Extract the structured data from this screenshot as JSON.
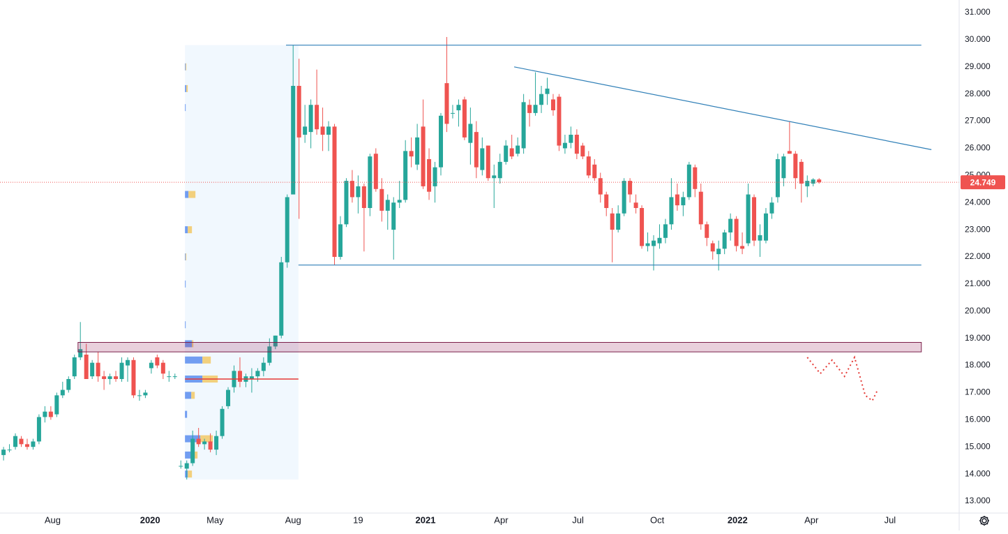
{
  "chart_data": {
    "type": "candlestick",
    "x": [
      0,
      1,
      2,
      3,
      4,
      5,
      6,
      7,
      8,
      9,
      10,
      11,
      12,
      13,
      14,
      15,
      16,
      17,
      18,
      19,
      20,
      21,
      22,
      23,
      24,
      25,
      26,
      27,
      28,
      29,
      30,
      31,
      32,
      33,
      34,
      35,
      36,
      37,
      38,
      39,
      40,
      41,
      42,
      43,
      44,
      45,
      46,
      47,
      48,
      49,
      50,
      51,
      52,
      53,
      54,
      55,
      56,
      57,
      58,
      59,
      60,
      61,
      62,
      63,
      64,
      65,
      66,
      67,
      68,
      69,
      70,
      71,
      72,
      73,
      74,
      75,
      76,
      77,
      78,
      79,
      80,
      81,
      82,
      83,
      84,
      85,
      86,
      87,
      88,
      89,
      90,
      91,
      92,
      93,
      94,
      95,
      96,
      97,
      98,
      99,
      100,
      101,
      102,
      103,
      104,
      105,
      106,
      107,
      108,
      109,
      110,
      111,
      112,
      113,
      114,
      115,
      116,
      117,
      118,
      119,
      120,
      121,
      122,
      123,
      124,
      125,
      126,
      127,
      128,
      129,
      130,
      131,
      132,
      133,
      134,
      135,
      136,
      137,
      138
    ],
    "ohlc": [
      [
        14.7,
        15.0,
        14.5,
        14.9
      ],
      [
        14.9,
        15.1,
        14.8,
        14.9
      ],
      [
        15.0,
        15.5,
        14.9,
        15.4
      ],
      [
        15.3,
        15.4,
        15.0,
        15.1
      ],
      [
        15.1,
        15.3,
        14.9,
        15.0
      ],
      [
        15.0,
        15.3,
        14.9,
        15.2
      ],
      [
        15.2,
        16.2,
        15.1,
        16.1
      ],
      [
        16.1,
        16.5,
        15.9,
        16.3
      ],
      [
        16.3,
        16.5,
        16.0,
        16.1
      ],
      [
        16.2,
        17.0,
        16.1,
        16.9
      ],
      [
        16.9,
        17.4,
        16.8,
        17.1
      ],
      [
        17.1,
        17.6,
        17.0,
        17.5
      ],
      [
        17.6,
        18.4,
        17.5,
        18.3
      ],
      [
        18.3,
        19.6,
        18.2,
        18.6
      ],
      [
        18.4,
        18.8,
        17.5,
        17.5
      ],
      [
        17.6,
        18.2,
        17.5,
        18.1
      ],
      [
        18.1,
        18.5,
        17.4,
        17.6
      ],
      [
        17.6,
        17.8,
        17.1,
        17.5
      ],
      [
        17.5,
        17.7,
        17.3,
        17.6
      ],
      [
        17.6,
        17.8,
        17.4,
        17.5
      ],
      [
        17.5,
        18.3,
        17.4,
        18.1
      ],
      [
        18.0,
        18.3,
        17.4,
        18.2
      ],
      [
        18.2,
        18.3,
        16.8,
        16.9
      ],
      [
        16.9,
        17.1,
        16.7,
        16.9
      ],
      [
        16.9,
        17.1,
        16.8,
        17.0
      ],
      [
        17.9,
        18.2,
        17.7,
        18.1
      ],
      [
        18.3,
        18.4,
        17.9,
        18.0
      ],
      [
        18.1,
        18.2,
        17.5,
        17.7
      ],
      [
        17.6,
        17.8,
        17.4,
        17.6
      ],
      [
        17.6,
        17.7,
        17.5,
        17.6
      ],
      [
        14.3,
        14.5,
        14.2,
        14.3
      ],
      [
        14.2,
        14.5,
        13.8,
        14.4
      ],
      [
        14.4,
        15.6,
        14.3,
        15.3
      ],
      [
        15.3,
        15.7,
        15.0,
        15.1
      ],
      [
        15.1,
        15.3,
        14.9,
        15.2
      ],
      [
        15.2,
        15.5,
        14.8,
        14.9
      ],
      [
        14.9,
        15.6,
        14.7,
        15.4
      ],
      [
        15.4,
        16.5,
        15.3,
        16.4
      ],
      [
        16.5,
        17.2,
        16.4,
        17.1
      ],
      [
        17.2,
        18.0,
        17.0,
        17.8
      ],
      [
        17.8,
        18.3,
        17.2,
        17.4
      ],
      [
        17.4,
        17.7,
        17.2,
        17.6
      ],
      [
        17.5,
        17.9,
        17.0,
        17.6
      ],
      [
        17.6,
        17.9,
        17.4,
        17.8
      ],
      [
        17.8,
        18.3,
        17.6,
        18.1
      ],
      [
        18.1,
        19.0,
        18.0,
        18.7
      ],
      [
        18.7,
        19.1,
        18.6,
        19.1
      ],
      [
        19.1,
        22.0,
        19.0,
        21.8
      ],
      [
        21.8,
        24.3,
        21.6,
        24.2
      ],
      [
        24.3,
        29.8,
        24.3,
        28.3
      ],
      [
        28.3,
        29.3,
        23.4,
        26.4
      ],
      [
        26.5,
        27.6,
        26.2,
        26.8
      ],
      [
        26.6,
        27.8,
        26.0,
        27.6
      ],
      [
        27.6,
        28.9,
        26.5,
        26.7
      ],
      [
        26.8,
        27.5,
        25.9,
        26.5
      ],
      [
        26.5,
        27.0,
        25.9,
        26.8
      ],
      [
        26.8,
        26.9,
        21.7,
        22.0
      ],
      [
        22.0,
        23.5,
        21.9,
        23.2
      ],
      [
        23.2,
        24.9,
        23.1,
        24.8
      ],
      [
        24.8,
        25.2,
        24.0,
        24.2
      ],
      [
        24.2,
        25.0,
        23.6,
        24.6
      ],
      [
        24.6,
        24.7,
        22.2,
        23.8
      ],
      [
        23.8,
        25.8,
        23.5,
        25.7
      ],
      [
        25.8,
        26.0,
        24.4,
        24.5
      ],
      [
        24.5,
        24.9,
        23.3,
        23.7
      ],
      [
        23.7,
        24.3,
        23.0,
        24.1
      ],
      [
        23.0,
        24.2,
        21.9,
        24.0
      ],
      [
        24.0,
        24.8,
        23.8,
        24.1
      ],
      [
        24.1,
        26.3,
        24.0,
        25.9
      ],
      [
        25.9,
        26.4,
        25.3,
        25.7
      ],
      [
        25.4,
        26.9,
        25.2,
        26.4
      ],
      [
        26.8,
        27.8,
        24.5,
        24.6
      ],
      [
        25.6,
        26.0,
        24.1,
        24.4
      ],
      [
        24.6,
        25.5,
        24.0,
        25.3
      ],
      [
        25.3,
        27.3,
        25.0,
        27.2
      ],
      [
        28.4,
        30.1,
        26.6,
        26.9
      ],
      [
        27.3,
        27.6,
        27.1,
        27.3
      ],
      [
        27.4,
        27.8,
        26.8,
        27.6
      ],
      [
        27.8,
        27.9,
        26.3,
        26.4
      ],
      [
        26.2,
        27.5,
        25.4,
        26.9
      ],
      [
        26.6,
        27.0,
        24.9,
        25.3
      ],
      [
        25.2,
        26.4,
        25.0,
        26.0
      ],
      [
        26.1,
        26.1,
        24.8,
        24.9
      ],
      [
        24.9,
        25.4,
        23.8,
        25.0
      ],
      [
        24.9,
        25.8,
        24.7,
        25.5
      ],
      [
        25.5,
        26.3,
        25.4,
        26.1
      ],
      [
        26.0,
        26.5,
        25.6,
        25.7
      ],
      [
        25.8,
        26.4,
        25.7,
        26.1
      ],
      [
        26.0,
        28.0,
        25.8,
        27.7
      ],
      [
        27.6,
        27.8,
        26.8,
        27.3
      ],
      [
        27.3,
        28.8,
        27.2,
        27.6
      ],
      [
        27.6,
        28.3,
        27.3,
        28.0
      ],
      [
        28.0,
        28.6,
        27.6,
        28.2
      ],
      [
        27.8,
        28.0,
        27.2,
        27.4
      ],
      [
        27.9,
        28.0,
        25.9,
        26.1
      ],
      [
        26.0,
        26.5,
        25.8,
        26.2
      ],
      [
        26.2,
        26.8,
        26.0,
        26.5
      ],
      [
        26.5,
        26.7,
        25.6,
        25.8
      ],
      [
        26.1,
        26.2,
        25.6,
        25.7
      ],
      [
        25.7,
        25.9,
        24.9,
        25.0
      ],
      [
        25.4,
        25.6,
        24.8,
        24.9
      ],
      [
        24.9,
        25.1,
        24.0,
        24.3
      ],
      [
        24.3,
        24.4,
        23.5,
        23.8
      ],
      [
        23.6,
        23.8,
        21.8,
        23.0
      ],
      [
        23.0,
        23.9,
        22.9,
        23.6
      ],
      [
        23.6,
        24.9,
        23.5,
        24.8
      ],
      [
        24.8,
        24.9,
        24.0,
        24.3
      ],
      [
        24.0,
        24.3,
        23.6,
        23.8
      ],
      [
        23.8,
        23.9,
        22.3,
        22.4
      ],
      [
        22.4,
        22.9,
        22.2,
        22.5
      ],
      [
        22.4,
        22.8,
        21.5,
        22.6
      ],
      [
        22.5,
        23.2,
        22.3,
        22.7
      ],
      [
        22.7,
        23.4,
        22.5,
        23.2
      ],
      [
        23.2,
        24.9,
        23.0,
        24.2
      ],
      [
        24.3,
        24.7,
        23.7,
        23.9
      ],
      [
        23.9,
        24.4,
        23.5,
        24.2
      ],
      [
        24.2,
        25.5,
        24.1,
        25.4
      ],
      [
        25.3,
        25.4,
        24.2,
        24.5
      ],
      [
        24.4,
        24.7,
        23.0,
        23.2
      ],
      [
        23.2,
        23.3,
        22.4,
        22.7
      ],
      [
        22.5,
        22.6,
        21.9,
        22.2
      ],
      [
        22.1,
        22.6,
        21.5,
        22.3
      ],
      [
        22.3,
        23.0,
        22.1,
        22.9
      ],
      [
        22.9,
        23.6,
        22.6,
        23.4
      ],
      [
        23.4,
        23.5,
        22.2,
        22.4
      ],
      [
        22.4,
        22.9,
        22.1,
        22.3
      ],
      [
        22.5,
        24.7,
        22.4,
        24.3
      ],
      [
        24.2,
        24.3,
        22.4,
        22.6
      ],
      [
        22.6,
        23.2,
        22.0,
        22.8
      ],
      [
        22.6,
        23.8,
        22.5,
        23.6
      ],
      [
        23.6,
        24.2,
        23.4,
        24.0
      ],
      [
        24.2,
        25.8,
        24.0,
        25.6
      ],
      [
        24.9,
        25.8,
        24.6,
        25.7
      ],
      [
        25.9,
        27.0,
        25.8,
        25.8
      ],
      [
        25.8,
        25.9,
        24.5,
        24.9
      ],
      [
        25.5,
        25.6,
        24.0,
        24.7
      ],
      [
        24.6,
        25.0,
        24.2,
        24.8
      ],
      [
        24.7,
        24.9,
        24.6,
        24.85
      ],
      [
        24.85,
        24.9,
        24.7,
        24.749
      ]
    ],
    "up_color": "#26a69a",
    "down_color": "#ef5350",
    "last_price": 24.749,
    "xlim": [
      -0.6,
      161.7
    ],
    "ylim": [
      12.563,
      31.463
    ],
    "xticks": [
      {
        "value": 8.3,
        "label": "Aug"
      },
      {
        "value": 24.8,
        "label": "2020"
      },
      {
        "value": 35.8,
        "label": "May"
      },
      {
        "value": 49,
        "label": "Aug"
      },
      {
        "value": 60,
        "label": "19"
      },
      {
        "value": 71.4,
        "label": "2021"
      },
      {
        "value": 84.2,
        "label": "Apr"
      },
      {
        "value": 97.2,
        "label": "Jul"
      },
      {
        "value": 110.6,
        "label": "Oct"
      },
      {
        "value": 124.2,
        "label": "2022"
      },
      {
        "value": 136.7,
        "label": "Apr"
      },
      {
        "value": 150,
        "label": "Jul"
      }
    ],
    "yticks": [
      {
        "value": 13,
        "label": "13.000"
      },
      {
        "value": 14,
        "label": "14.000"
      },
      {
        "value": 15,
        "label": "15.000"
      },
      {
        "value": 16,
        "label": "16.000"
      },
      {
        "value": 17,
        "label": "17.000"
      },
      {
        "value": 18,
        "label": "18.000"
      },
      {
        "value": 19,
        "label": "19.000"
      },
      {
        "value": 20,
        "label": "20.000"
      },
      {
        "value": 21,
        "label": "21.000"
      },
      {
        "value": 22,
        "label": "22.000"
      },
      {
        "value": 23,
        "label": "23.000"
      },
      {
        "value": 24,
        "label": "24.000"
      },
      {
        "value": 25,
        "label": "25.000"
      },
      {
        "value": 26,
        "label": "26.000"
      },
      {
        "value": 27,
        "label": "27.000"
      },
      {
        "value": 28,
        "label": "28.000"
      },
      {
        "value": 29,
        "label": "29.000"
      },
      {
        "value": 30,
        "label": "30.000"
      },
      {
        "value": 31,
        "label": "31.000"
      }
    ],
    "grid": true,
    "drawings": {
      "resistance": {
        "x": [
          47.8,
          155.3
        ],
        "y": [
          29.8,
          29.8
        ]
      },
      "support": {
        "x": [
          49.9,
          155.3
        ],
        "y": [
          21.7,
          21.7
        ]
      },
      "trendline": {
        "x": [
          86.4,
          157
        ],
        "y": [
          29.0,
          25.95
        ]
      },
      "zone": {
        "x": [
          12.6,
          155.3
        ],
        "y": [
          18.5,
          18.85
        ]
      },
      "range_box": {
        "x": [
          30.7,
          49.9
        ],
        "y": [
          13.8,
          29.8
        ]
      },
      "poc": {
        "x": [
          30.7,
          49.9
        ],
        "y": [
          17.5,
          17.5
        ]
      },
      "projection": {
        "x": [
          136,
          138.2,
          140.2,
          142.3,
          144,
          145.8,
          147,
          147.9
        ],
        "y": [
          18.3,
          17.7,
          18.2,
          17.6,
          18.3,
          16.9,
          16.7,
          17.1
        ]
      }
    },
    "volume_profile": {
      "prices": [
        29.0,
        28.2,
        27.5,
        24.3,
        23.0,
        22.0,
        21.0,
        19.5,
        18.8,
        18.2,
        17.5,
        16.9,
        16.2,
        15.3,
        14.7,
        14.0
      ],
      "buy": [
        1,
        2,
        1,
        5,
        4,
        1,
        1,
        1,
        10,
        25,
        25,
        9,
        3,
        22,
        10,
        4
      ],
      "sell": [
        1,
        2,
        0,
        10,
        6,
        1,
        0,
        0,
        2,
        12,
        22,
        5,
        0,
        18,
        8,
        6
      ]
    }
  }
}
